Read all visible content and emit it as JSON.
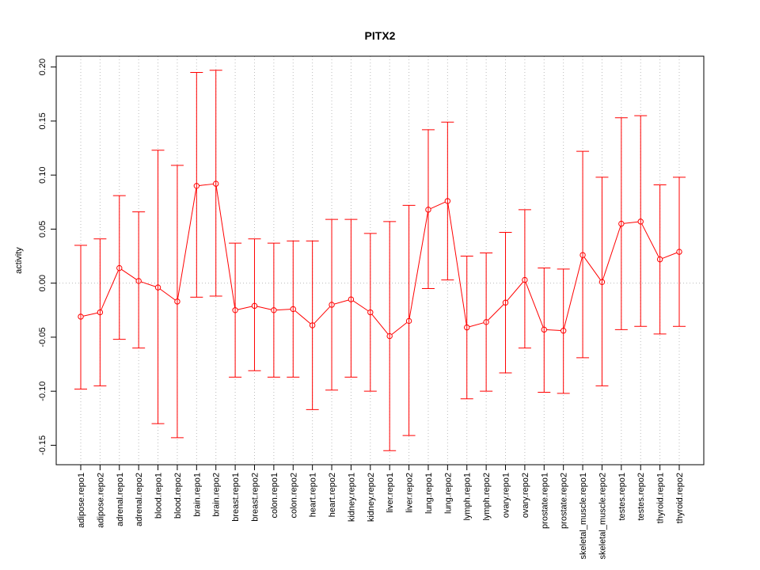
{
  "chart_data": {
    "type": "line",
    "title": "PITX2",
    "xlabel": "",
    "ylabel": "activity",
    "ylim": [
      -0.168,
      0.21
    ],
    "yticks": [
      -0.15,
      -0.1,
      -0.05,
      0.0,
      0.05,
      0.1,
      0.15,
      0.2
    ],
    "ytick_labels": [
      "-0.15",
      "-0.10",
      "-0.05",
      "0.00",
      "0.05",
      "0.10",
      "0.15",
      "0.20"
    ],
    "grid": true,
    "series_color": "#ff0000",
    "grid_color": "#bbbbbb",
    "categories": [
      "adipose.repo1",
      "adipose.repo2",
      "adrenal.repo1",
      "adrenal.repo2",
      "blood.repo1",
      "blood.repo2",
      "brain.repo1",
      "brain.repo2",
      "breast.repo1",
      "breast.repo2",
      "colon.repo1",
      "colon.repo2",
      "heart.repo1",
      "heart.repo2",
      "kidney.repo1",
      "kidney.repo2",
      "liver.repo1",
      "liver.repo2",
      "lung.repo1",
      "lung.repo2",
      "lymph.repo1",
      "lymph.repo2",
      "ovary.repo1",
      "ovary.repo2",
      "prostate.repo1",
      "prostate.repo2",
      "skeletal_muscle.repo1",
      "skeletal_muscle.repo2",
      "testes.repo1",
      "testes.repo2",
      "thyroid.repo1",
      "thyroid.repo2"
    ],
    "values": [
      -0.031,
      -0.027,
      0.014,
      0.002,
      -0.004,
      -0.017,
      0.09,
      0.092,
      -0.025,
      -0.021,
      -0.025,
      -0.024,
      -0.039,
      -0.02,
      -0.015,
      -0.027,
      -0.049,
      -0.035,
      0.068,
      0.076,
      -0.041,
      -0.036,
      -0.018,
      0.003,
      -0.043,
      -0.044,
      0.026,
      0.001,
      0.055,
      0.057,
      0.022,
      0.029
    ],
    "error_upper": [
      0.035,
      0.041,
      0.081,
      0.066,
      0.123,
      0.109,
      0.195,
      0.197,
      0.037,
      0.041,
      0.037,
      0.039,
      0.039,
      0.059,
      0.059,
      0.046,
      0.057,
      0.072,
      0.142,
      0.149,
      0.025,
      0.028,
      0.047,
      0.068,
      0.014,
      0.013,
      0.122,
      0.098,
      0.153,
      0.155,
      0.091,
      0.098
    ],
    "error_lower": [
      -0.098,
      -0.095,
      -0.052,
      -0.06,
      -0.13,
      -0.143,
      -0.013,
      -0.012,
      -0.087,
      -0.081,
      -0.087,
      -0.087,
      -0.117,
      -0.099,
      -0.087,
      -0.1,
      -0.155,
      -0.141,
      -0.005,
      0.003,
      -0.107,
      -0.1,
      -0.083,
      -0.06,
      -0.101,
      -0.102,
      -0.069,
      -0.095,
      -0.043,
      -0.04,
      -0.047,
      -0.04
    ]
  }
}
